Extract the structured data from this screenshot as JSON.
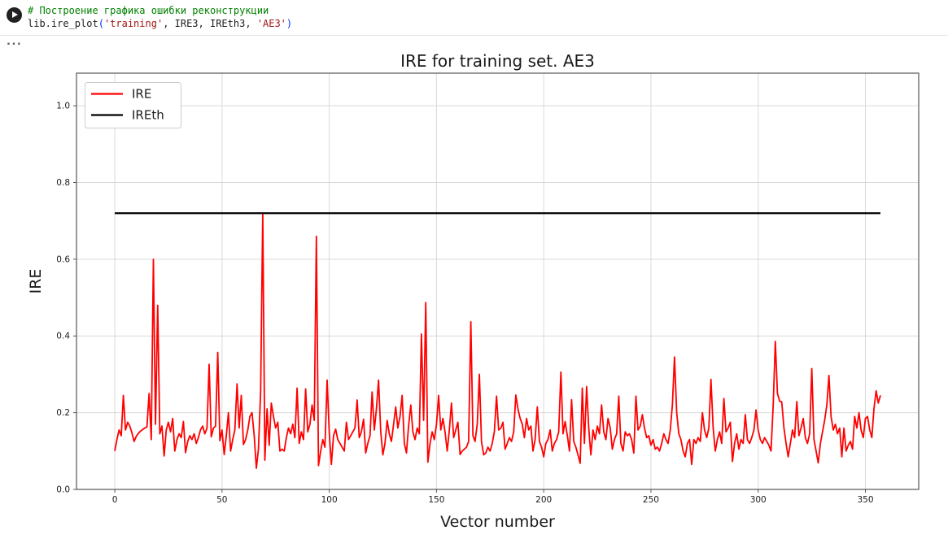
{
  "notebook": {
    "code": {
      "comment": "# Построение графика ошибки реконструкции",
      "call": {
        "fn": "lib.ire_plot",
        "open_paren": "(",
        "arg_string1": "'training'",
        "middle": ", IRE3, IREth3, ",
        "arg_string2": "'AE3'",
        "close_paren": ")"
      }
    },
    "output_ellipsis": "..."
  },
  "colors": {
    "comment_green": "#008000",
    "string_red": "#a31515",
    "bracket_blue": "#0431fa",
    "ire_red": "#ff0000",
    "ireth_black": "#000000",
    "grid_gray": "#d9d9d9",
    "spine_gray": "#555555"
  },
  "chart_data": {
    "type": "line",
    "title": "IRE for training set. AE3",
    "xlabel": "Vector number",
    "ylabel": "IRE",
    "xlim": [
      -17.85,
      374.85
    ],
    "ylim": [
      0,
      1.085
    ],
    "grid": true,
    "legend_position": "upper left",
    "xticks": [
      0,
      50,
      100,
      150,
      200,
      250,
      300,
      350
    ],
    "xtick_labels": [
      "0",
      "50",
      "100",
      "150",
      "200",
      "250",
      "300",
      "350"
    ],
    "yticks": [
      0.0,
      0.2,
      0.4,
      0.6,
      0.8,
      1.0
    ],
    "ytick_labels": [
      "0.0",
      "0.2",
      "0.4",
      "0.6",
      "0.8",
      "1.0"
    ],
    "series": [
      {
        "name": "IRE",
        "color": "#ff0000",
        "x_start": 0,
        "x_step": 1,
        "values": [
          0.1,
          0.13,
          0.155,
          0.14,
          0.245,
          0.155,
          0.175,
          0.165,
          0.148,
          0.125,
          0.138,
          0.146,
          0.152,
          0.156,
          0.16,
          0.163,
          0.25,
          0.13,
          0.6,
          0.17,
          0.48,
          0.145,
          0.165,
          0.087,
          0.155,
          0.175,
          0.15,
          0.185,
          0.1,
          0.13,
          0.145,
          0.135,
          0.177,
          0.096,
          0.125,
          0.14,
          0.13,
          0.145,
          0.12,
          0.135,
          0.156,
          0.165,
          0.145,
          0.16,
          0.326,
          0.137,
          0.16,
          0.165,
          0.357,
          0.127,
          0.155,
          0.091,
          0.14,
          0.2,
          0.1,
          0.13,
          0.155,
          0.275,
          0.16,
          0.245,
          0.117,
          0.13,
          0.155,
          0.19,
          0.2,
          0.14,
          0.055,
          0.105,
          0.255,
          0.72,
          0.076,
          0.21,
          0.115,
          0.225,
          0.19,
          0.16,
          0.175,
          0.1,
          0.105,
          0.1,
          0.135,
          0.16,
          0.145,
          0.17,
          0.135,
          0.264,
          0.12,
          0.15,
          0.13,
          0.262,
          0.15,
          0.17,
          0.22,
          0.18,
          0.66,
          0.062,
          0.1,
          0.13,
          0.11,
          0.285,
          0.15,
          0.065,
          0.14,
          0.157,
          0.13,
          0.12,
          0.11,
          0.1,
          0.175,
          0.13,
          0.14,
          0.15,
          0.16,
          0.233,
          0.135,
          0.15,
          0.183,
          0.095,
          0.12,
          0.14,
          0.254,
          0.155,
          0.21,
          0.285,
          0.15,
          0.09,
          0.12,
          0.18,
          0.145,
          0.125,
          0.17,
          0.215,
          0.16,
          0.19,
          0.245,
          0.12,
          0.095,
          0.165,
          0.22,
          0.15,
          0.13,
          0.16,
          0.145,
          0.405,
          0.18,
          0.487,
          0.071,
          0.12,
          0.15,
          0.13,
          0.17,
          0.245,
          0.155,
          0.185,
          0.15,
          0.1,
          0.155,
          0.225,
          0.135,
          0.155,
          0.175,
          0.091,
          0.1,
          0.105,
          0.11,
          0.125,
          0.437,
          0.14,
          0.125,
          0.17,
          0.3,
          0.125,
          0.09,
          0.095,
          0.11,
          0.1,
          0.12,
          0.15,
          0.243,
          0.155,
          0.16,
          0.175,
          0.105,
          0.12,
          0.135,
          0.125,
          0.15,
          0.246,
          0.21,
          0.185,
          0.17,
          0.135,
          0.185,
          0.155,
          0.165,
          0.1,
          0.13,
          0.215,
          0.125,
          0.11,
          0.085,
          0.12,
          0.13,
          0.155,
          0.1,
          0.12,
          0.13,
          0.15,
          0.306,
          0.145,
          0.177,
          0.14,
          0.1,
          0.234,
          0.125,
          0.11,
          0.09,
          0.068,
          0.264,
          0.12,
          0.268,
          0.16,
          0.09,
          0.155,
          0.13,
          0.165,
          0.145,
          0.22,
          0.15,
          0.13,
          0.185,
          0.16,
          0.105,
          0.13,
          0.145,
          0.243,
          0.12,
          0.1,
          0.15,
          0.14,
          0.145,
          0.13,
          0.095,
          0.243,
          0.155,
          0.165,
          0.195,
          0.16,
          0.135,
          0.14,
          0.115,
          0.13,
          0.105,
          0.11,
          0.1,
          0.12,
          0.145,
          0.13,
          0.12,
          0.155,
          0.22,
          0.345,
          0.2,
          0.145,
          0.13,
          0.1,
          0.085,
          0.12,
          0.13,
          0.065,
          0.13,
          0.12,
          0.135,
          0.125,
          0.2,
          0.155,
          0.135,
          0.16,
          0.287,
          0.16,
          0.1,
          0.13,
          0.15,
          0.12,
          0.237,
          0.15,
          0.16,
          0.175,
          0.073,
          0.12,
          0.145,
          0.105,
          0.13,
          0.12,
          0.195,
          0.13,
          0.12,
          0.135,
          0.155,
          0.207,
          0.155,
          0.13,
          0.12,
          0.135,
          0.125,
          0.115,
          0.1,
          0.22,
          0.386,
          0.25,
          0.23,
          0.228,
          0.16,
          0.12,
          0.085,
          0.12,
          0.155,
          0.135,
          0.229,
          0.14,
          0.16,
          0.185,
          0.135,
          0.12,
          0.145,
          0.315,
          0.13,
          0.1,
          0.069,
          0.12,
          0.15,
          0.18,
          0.22,
          0.297,
          0.19,
          0.155,
          0.17,
          0.145,
          0.16,
          0.085,
          0.16,
          0.1,
          0.115,
          0.125,
          0.105,
          0.19,
          0.16,
          0.2,
          0.155,
          0.135,
          0.185,
          0.19,
          0.155,
          0.135,
          0.21,
          0.257,
          0.225,
          0.245
        ]
      },
      {
        "name": "IREth",
        "color": "#000000",
        "constant": 0.72,
        "x_range": [
          0,
          357
        ]
      }
    ]
  }
}
